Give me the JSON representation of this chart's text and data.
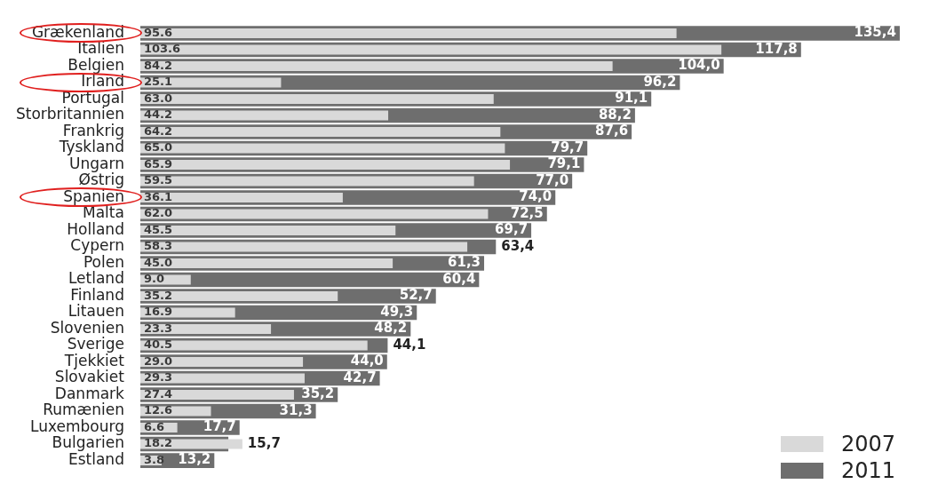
{
  "chart_data": {
    "type": "bar",
    "orientation": "horizontal",
    "categories": [
      "Grækenland",
      "Italien",
      "Belgien",
      "Irland",
      "Portugal",
      "Storbritannien",
      "Frankrig",
      "Tyskland",
      "Ungarn",
      "Østrig",
      "Spanien",
      "Malta",
      "Holland",
      "Cypern",
      "Polen",
      "Letland",
      "Finland",
      "Litauen",
      "Slovenien",
      "Sverige",
      "Tjekkiet",
      "Slovakiet",
      "Danmark",
      "Rumænien",
      "Luxembourg",
      "Bulgarien",
      "Estland"
    ],
    "series": [
      {
        "name": "2011",
        "color": "#6e6e6e",
        "values": [
          135.4,
          117.8,
          104.0,
          96.2,
          91.1,
          88.2,
          87.6,
          79.7,
          79.1,
          77.0,
          74.0,
          72.5,
          69.7,
          63.4,
          61.3,
          60.4,
          52.7,
          49.3,
          48.2,
          44.1,
          44.0,
          42.7,
          35.2,
          31.3,
          17.7,
          15.7,
          13.2
        ],
        "value_labels": [
          "135,4",
          "117,8",
          "104,0",
          "96,2",
          "91,1",
          "88,2",
          "87,6",
          "79,7",
          "79,1",
          "77,0",
          "74,0",
          "72,5",
          "69,7",
          "63,4",
          "61,3",
          "60,4",
          "52,7",
          "49,3",
          "48,2",
          "44,1",
          "44,0",
          "42,7",
          "35,2",
          "31,3",
          "17,7",
          "15,7",
          "13,2"
        ]
      },
      {
        "name": "2007",
        "color": "#d9d9d9",
        "values": [
          95.6,
          103.6,
          84.2,
          25.1,
          63.0,
          44.2,
          64.2,
          65.0,
          65.9,
          59.5,
          36.1,
          62.0,
          45.5,
          58.3,
          45.0,
          9.0,
          35.2,
          16.9,
          23.3,
          40.5,
          29.0,
          29.3,
          27.4,
          12.6,
          6.6,
          18.2,
          3.8
        ],
        "value_labels": [
          "95.6",
          "103.6",
          "84.2",
          "25.1",
          "63.0",
          "44.2",
          "64.2",
          "65.0",
          "65.9",
          "59.5",
          "36.1",
          "62.0",
          "45.5",
          "58.3",
          "45.0",
          "9.0",
          "35.2",
          "16.9",
          "23.3",
          "40.5",
          "29.0",
          "29.3",
          "27.4",
          "12.6",
          "6.6",
          "18.2",
          "3.8"
        ]
      }
    ],
    "legend": "bottom right",
    "grid": false
  }
}
